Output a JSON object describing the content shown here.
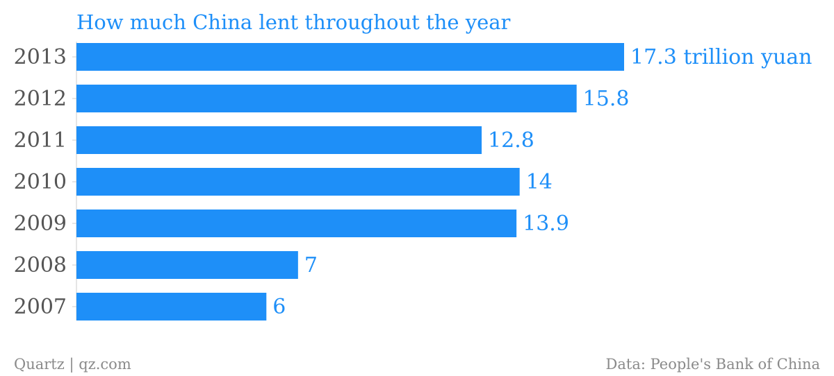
{
  "colors": {
    "bar": "#1e8ff8",
    "label": "#1e8ff8",
    "axis_text": "#555555",
    "footer": "#8a8a8a"
  },
  "chart_data": {
    "type": "bar",
    "orientation": "horizontal",
    "title": "How much China lent throughout the year",
    "categories": [
      "2013",
      "2012",
      "2011",
      "2010",
      "2009",
      "2008",
      "2007"
    ],
    "values": [
      17.3,
      15.8,
      12.8,
      14,
      13.9,
      7,
      6
    ],
    "value_labels": [
      "17.3 trillion yuan",
      "15.8",
      "12.8",
      "14",
      "13.9",
      "7",
      "6"
    ],
    "xlim": [
      0,
      17.3
    ],
    "grid": false,
    "legend": "none"
  },
  "footer": {
    "source_left": "Quartz | qz.com",
    "source_right": "Data: People's Bank of China"
  }
}
